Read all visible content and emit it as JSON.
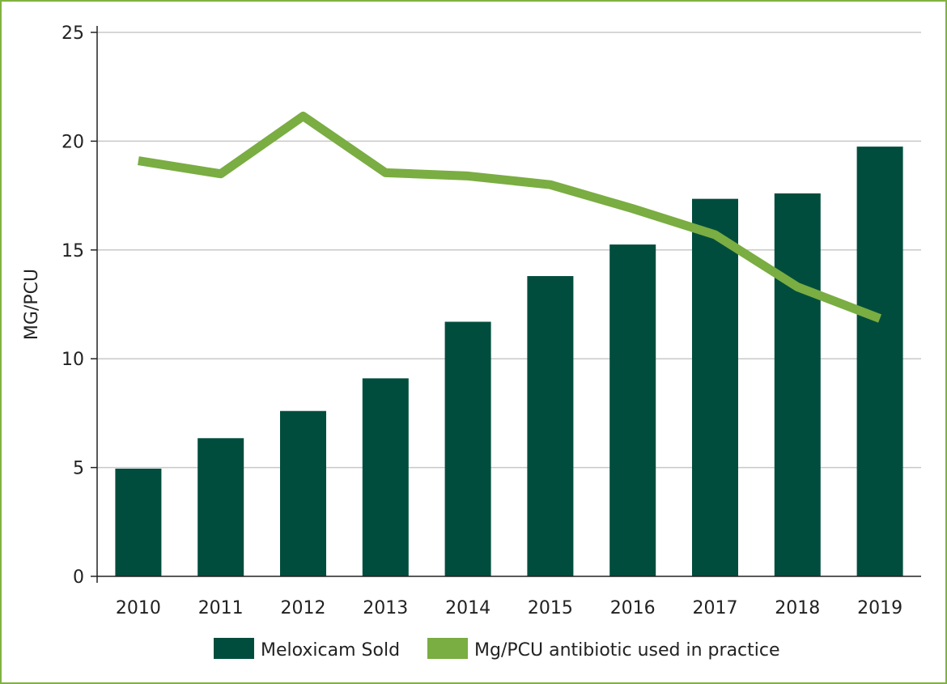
{
  "chart_data": {
    "type": "bar",
    "title": "",
    "xlabel": "",
    "ylabel": "MG/PCU",
    "ylim": [
      0,
      25
    ],
    "yticks": [
      0,
      5,
      10,
      15,
      20,
      25
    ],
    "grid": true,
    "legend_position": "bottom",
    "categories": [
      "2010",
      "2011",
      "2012",
      "2013",
      "2014",
      "2015",
      "2016",
      "2017",
      "2018",
      "2019"
    ],
    "series": [
      {
        "name": "Meloxicam Sold",
        "type": "bar",
        "color": "#004d3d",
        "values": [
          4.95,
          6.35,
          7.6,
          9.1,
          11.7,
          13.8,
          15.25,
          17.35,
          17.6,
          19.75
        ]
      },
      {
        "name": "Mg/PCU antibiotic used in practice",
        "type": "line",
        "color": "#7aad42",
        "values": [
          19.1,
          18.5,
          21.15,
          18.55,
          18.4,
          18.0,
          16.9,
          15.7,
          13.3,
          11.85
        ]
      }
    ]
  }
}
